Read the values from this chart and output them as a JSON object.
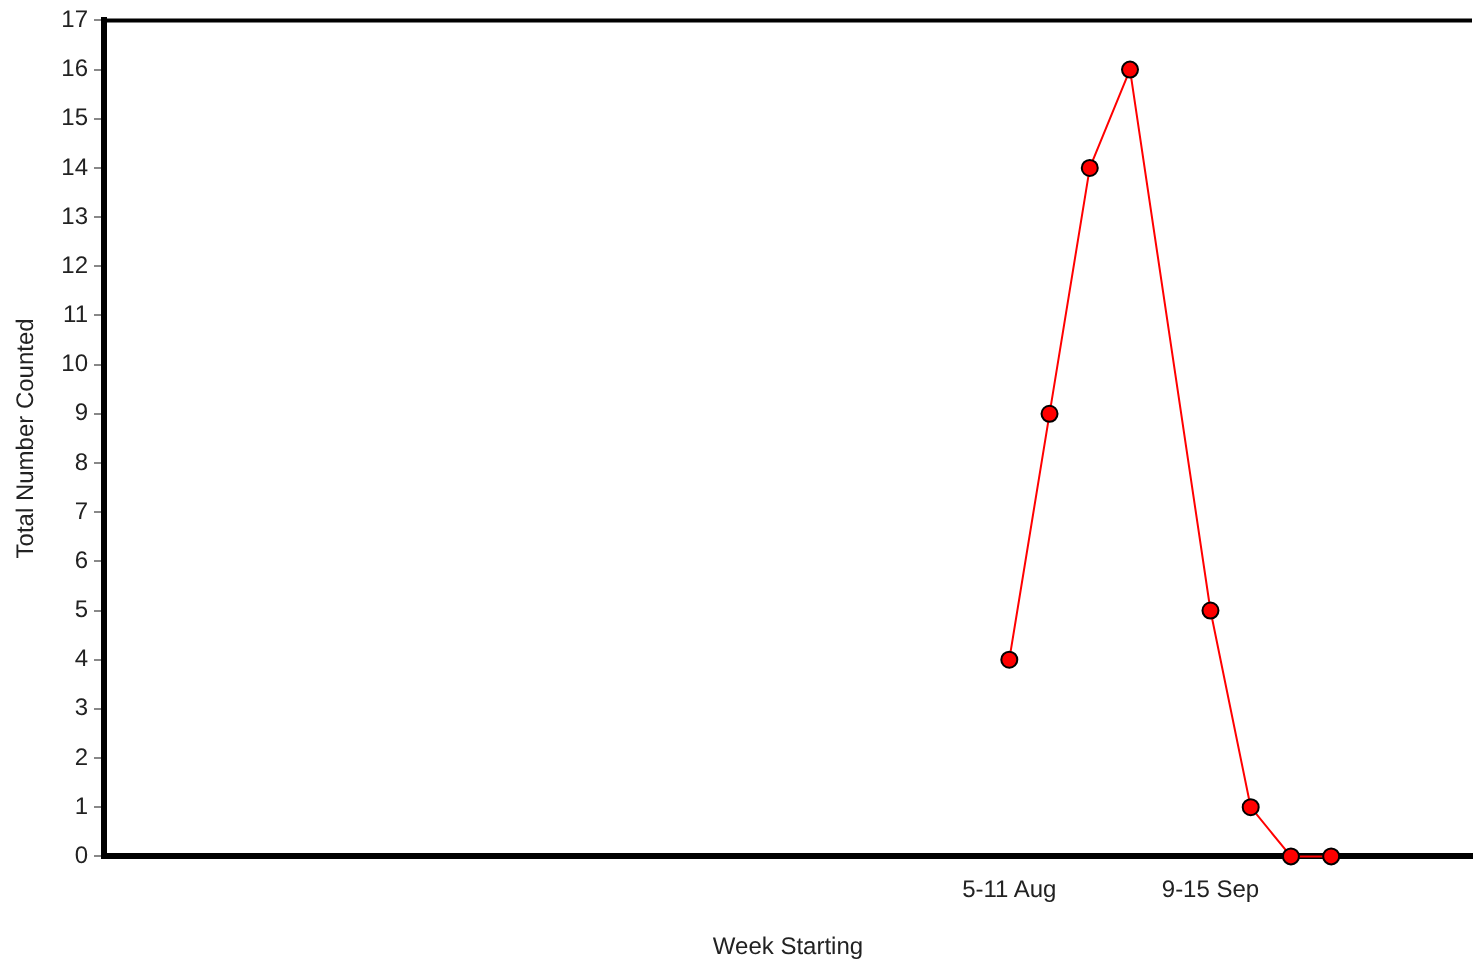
{
  "chart_data": {
    "type": "line",
    "xlabel": "Week Starting",
    "ylabel": "Total Number Counted",
    "categories": [
      null,
      null,
      null,
      null,
      null,
      null,
      null,
      null,
      null,
      null,
      null,
      null,
      null,
      null,
      null,
      null,
      null,
      null,
      null,
      null,
      null,
      null,
      "5-11 Aug",
      null,
      null,
      null,
      null,
      "9-15 Sep",
      null,
      null,
      null,
      null,
      null,
      null
    ],
    "series": [
      {
        "color": "#ff0000",
        "values": [
          null,
          null,
          null,
          null,
          null,
          null,
          null,
          null,
          null,
          null,
          null,
          null,
          null,
          null,
          null,
          null,
          null,
          null,
          null,
          null,
          null,
          null,
          4,
          9,
          14,
          16,
          null,
          5,
          1,
          0,
          0,
          null,
          null,
          null
        ]
      }
    ],
    "ylim": [
      0,
      17
    ],
    "yticks": [
      0,
      1,
      2,
      3,
      4,
      5,
      6,
      7,
      8,
      9,
      10,
      11,
      12,
      13,
      14,
      15,
      16,
      17
    ],
    "grid": false,
    "legend": false,
    "marker": "circle",
    "line_style": "solid"
  }
}
